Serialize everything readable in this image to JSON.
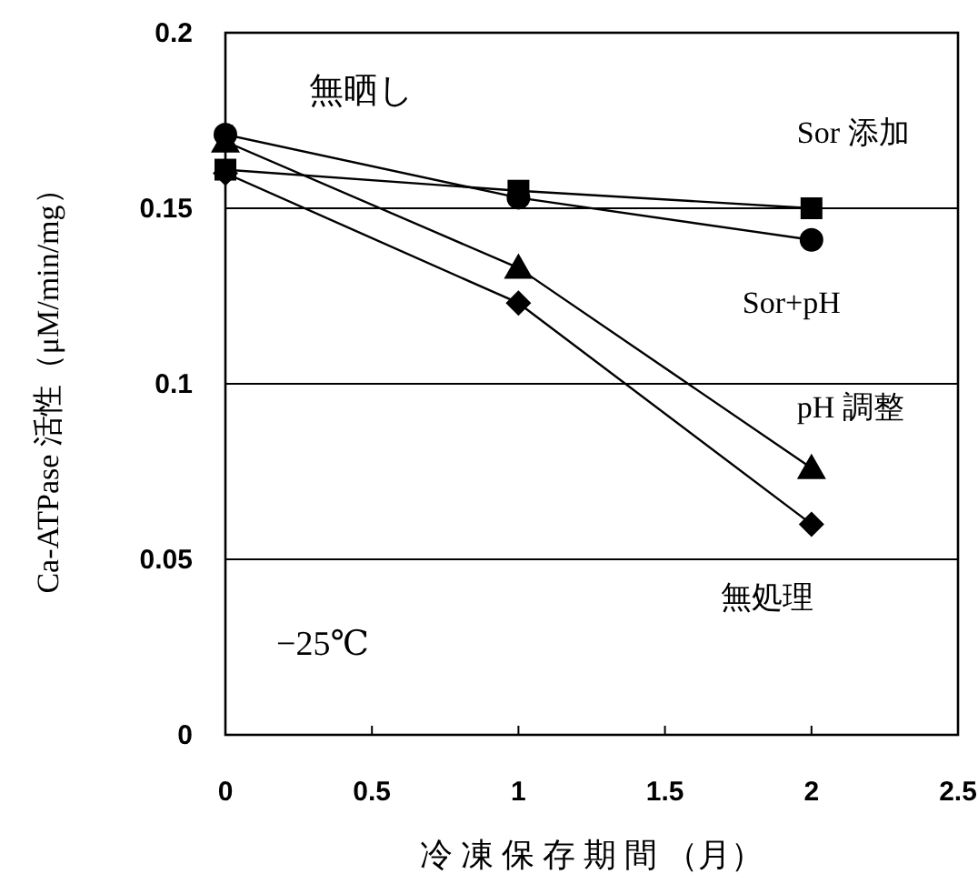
{
  "chart_data": {
    "type": "line",
    "xlabel": "冷 凍 保 存 期 間 （月）",
    "ylabel": "Ca-ATPase 活性（μM/min/mg）",
    "x": [
      0,
      1,
      2
    ],
    "xlim": [
      0,
      2.5
    ],
    "xticks": [
      0,
      0.5,
      1,
      1.5,
      2,
      2.5
    ],
    "ylim": [
      0,
      0.2
    ],
    "yticks": [
      0,
      0.05,
      0.1,
      0.15,
      0.2
    ],
    "grid": "y",
    "line_style": "solid",
    "series": [
      {
        "name": "Sor 添加",
        "color": "#000000",
        "marker": "square",
        "values": [
          0.161,
          0.155,
          0.15
        ]
      },
      {
        "name": "Sor+pH",
        "color": "#000000",
        "marker": "circle",
        "values": [
          0.171,
          0.153,
          0.141
        ]
      },
      {
        "name": "pH 調整",
        "color": "#000000",
        "marker": "triangle",
        "values": [
          0.169,
          0.133,
          0.076
        ]
      },
      {
        "name": "無処理",
        "color": "#000000",
        "marker": "diamond",
        "values": [
          0.16,
          0.123,
          0.06
        ]
      }
    ],
    "annotations": [
      "無晒し",
      "−25℃"
    ]
  }
}
